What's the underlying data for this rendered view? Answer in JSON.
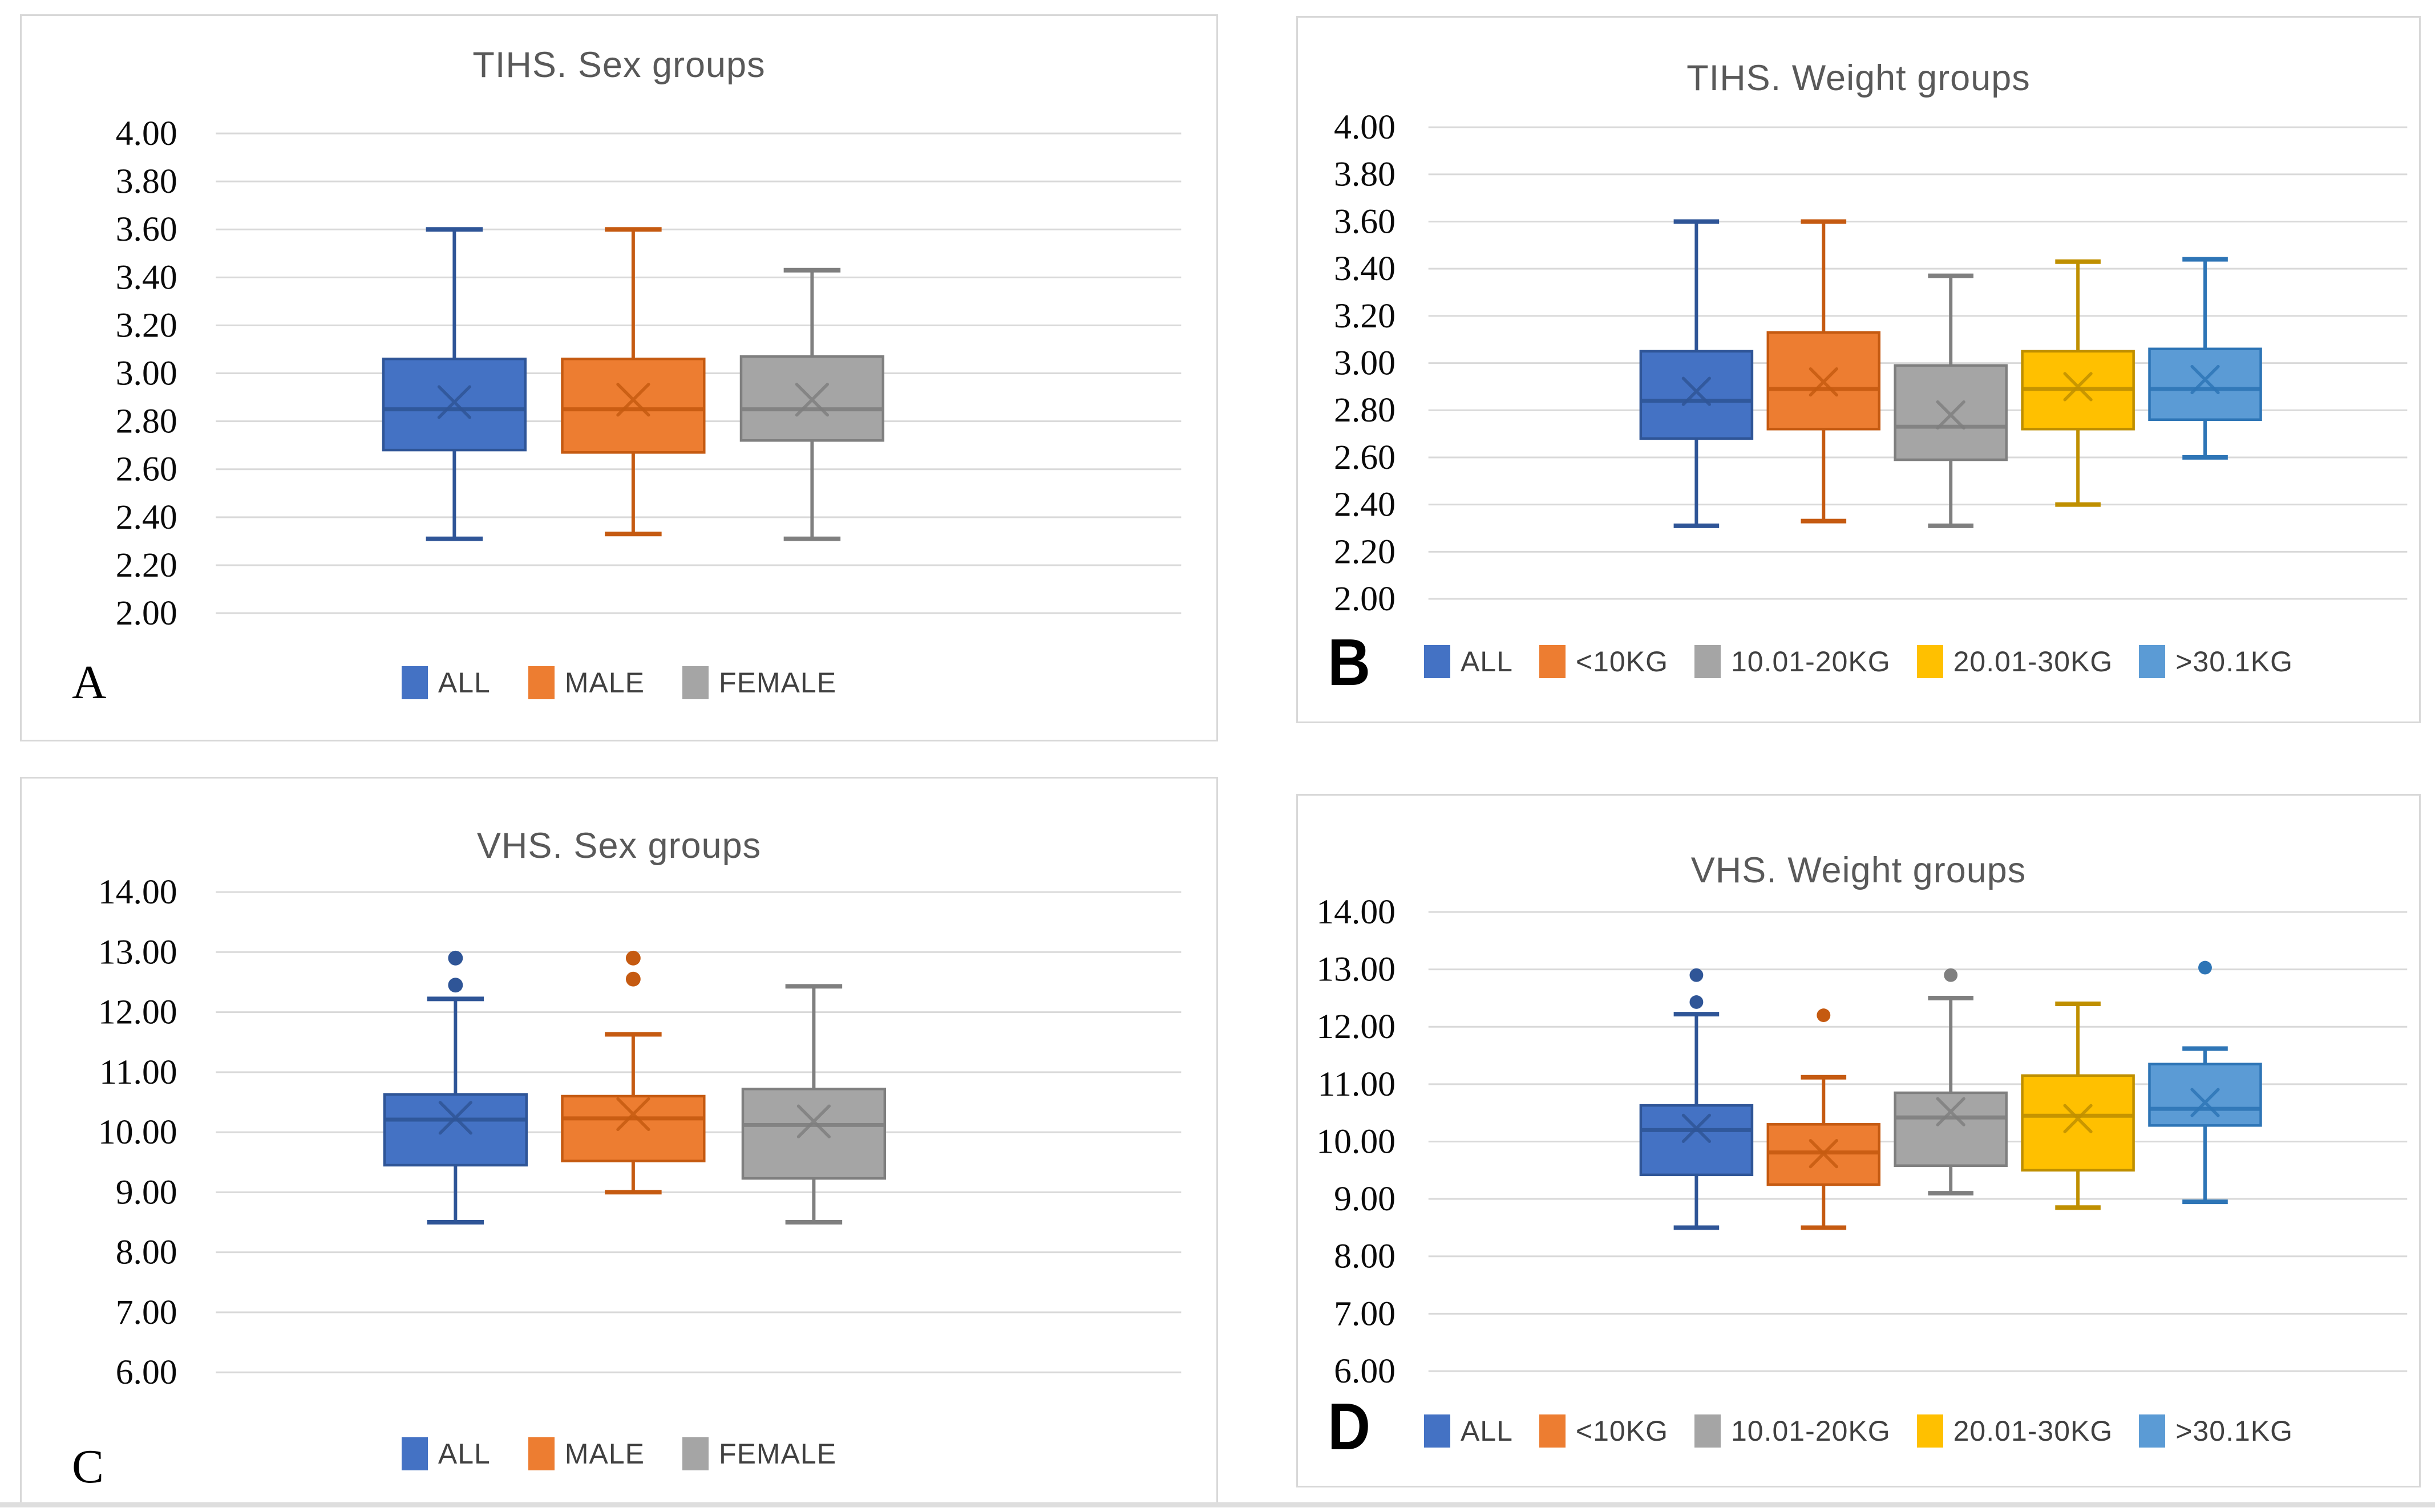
{
  "chart_data": [
    {
      "id": "A",
      "panel_label": "A",
      "title": "TIHS. Sex groups",
      "type": "boxplot",
      "grid": true,
      "legend_position": "bottom",
      "mean_marker": "x",
      "gridline_color": "#d9d9d9",
      "y_axis": {
        "min": 2.0,
        "max": 4.0,
        "step": 0.2,
        "decimals": 2
      },
      "series": [
        {
          "name": "ALL",
          "fill": "#4472C4",
          "edge": "#2F5597",
          "whisker_low": 2.31,
          "q1": 2.68,
          "median": 2.85,
          "mean": 2.88,
          "q3": 3.06,
          "whisker_high": 3.6,
          "outliers": []
        },
        {
          "name": "MALE",
          "fill": "#ED7D31",
          "edge": "#C55A11",
          "whisker_low": 2.33,
          "q1": 2.67,
          "median": 2.85,
          "mean": 2.89,
          "q3": 3.06,
          "whisker_high": 3.6,
          "outliers": []
        },
        {
          "name": "FEMALE",
          "fill": "#A5A5A5",
          "edge": "#7F7F7F",
          "whisker_low": 2.31,
          "q1": 2.72,
          "median": 2.85,
          "mean": 2.89,
          "q3": 3.07,
          "whisker_high": 3.43,
          "outliers": []
        }
      ]
    },
    {
      "id": "B",
      "panel_label": "B",
      "title": "TIHS. Weight groups",
      "type": "boxplot",
      "grid": true,
      "legend_position": "bottom",
      "mean_marker": "x",
      "gridline_color": "#d9d9d9",
      "y_axis": {
        "min": 2.0,
        "max": 4.0,
        "step": 0.2,
        "decimals": 2
      },
      "series": [
        {
          "name": "ALL",
          "fill": "#4472C4",
          "edge": "#2F5597",
          "whisker_low": 2.31,
          "q1": 2.68,
          "median": 2.84,
          "mean": 2.88,
          "q3": 3.05,
          "whisker_high": 3.6,
          "outliers": []
        },
        {
          "name": "<10KG",
          "fill": "#ED7D31",
          "edge": "#C55A11",
          "whisker_low": 2.33,
          "q1": 2.72,
          "median": 2.89,
          "mean": 2.92,
          "q3": 3.13,
          "whisker_high": 3.6,
          "outliers": []
        },
        {
          "name": "10.01-20KG",
          "fill": "#A5A5A5",
          "edge": "#7F7F7F",
          "whisker_low": 2.31,
          "q1": 2.59,
          "median": 2.73,
          "mean": 2.78,
          "q3": 2.99,
          "whisker_high": 3.37,
          "outliers": []
        },
        {
          "name": "20.01-30KG",
          "fill": "#FFC000",
          "edge": "#BF8F00",
          "whisker_low": 2.4,
          "q1": 2.72,
          "median": 2.89,
          "mean": 2.9,
          "q3": 3.05,
          "whisker_high": 3.43,
          "outliers": []
        },
        {
          "name": ">30.1KG",
          "fill": "#5B9BD5",
          "edge": "#2E75B6",
          "whisker_low": 2.6,
          "q1": 2.76,
          "median": 2.89,
          "mean": 2.93,
          "q3": 3.06,
          "whisker_high": 3.44,
          "outliers": []
        }
      ]
    },
    {
      "id": "C",
      "panel_label": "C",
      "title": "VHS. Sex groups",
      "type": "boxplot",
      "grid": true,
      "legend_position": "bottom",
      "mean_marker": "x",
      "gridline_color": "#d9d9d9",
      "y_axis": {
        "min": 6.0,
        "max": 14.0,
        "step": 1.0,
        "decimals": 2
      },
      "series": [
        {
          "name": "ALL",
          "fill": "#4472C4",
          "edge": "#2F5597",
          "whisker_low": 8.5,
          "q1": 9.45,
          "median": 10.21,
          "mean": 10.24,
          "q3": 10.63,
          "whisker_high": 12.22,
          "outliers": [
            12.45,
            12.9
          ]
        },
        {
          "name": "MALE",
          "fill": "#ED7D31",
          "edge": "#C55A11",
          "whisker_low": 9.0,
          "q1": 9.52,
          "median": 10.23,
          "mean": 10.3,
          "q3": 10.6,
          "whisker_high": 11.63,
          "outliers": [
            12.55,
            12.9
          ]
        },
        {
          "name": "FEMALE",
          "fill": "#A5A5A5",
          "edge": "#7F7F7F",
          "whisker_low": 8.5,
          "q1": 9.23,
          "median": 10.12,
          "mean": 10.18,
          "q3": 10.72,
          "whisker_high": 12.43,
          "outliers": []
        }
      ]
    },
    {
      "id": "D",
      "panel_label": "D",
      "title": "VHS. Weight groups",
      "type": "boxplot",
      "grid": true,
      "legend_position": "bottom",
      "mean_marker": "x",
      "gridline_color": "#d9d9d9",
      "y_axis": {
        "min": 6.0,
        "max": 14.0,
        "step": 1.0,
        "decimals": 2
      },
      "series": [
        {
          "name": "ALL",
          "fill": "#4472C4",
          "edge": "#2F5597",
          "whisker_low": 8.5,
          "q1": 9.42,
          "median": 10.2,
          "mean": 10.23,
          "q3": 10.63,
          "whisker_high": 12.22,
          "outliers": [
            12.43,
            12.9
          ]
        },
        {
          "name": "<10KG",
          "fill": "#ED7D31",
          "edge": "#C55A11",
          "whisker_low": 8.5,
          "q1": 9.25,
          "median": 9.81,
          "mean": 9.79,
          "q3": 10.3,
          "whisker_high": 11.12,
          "outliers": [
            12.2
          ]
        },
        {
          "name": "10.01-20KG",
          "fill": "#A5A5A5",
          "edge": "#7F7F7F",
          "whisker_low": 9.1,
          "q1": 9.58,
          "median": 10.42,
          "mean": 10.52,
          "q3": 10.85,
          "whisker_high": 12.5,
          "outliers": [
            12.9
          ]
        },
        {
          "name": "20.01-30KG",
          "fill": "#FFC000",
          "edge": "#BF8F00",
          "whisker_low": 8.85,
          "q1": 9.5,
          "median": 10.45,
          "mean": 10.4,
          "q3": 11.15,
          "whisker_high": 12.4,
          "outliers": []
        },
        {
          "name": ">30.1KG",
          "fill": "#5B9BD5",
          "edge": "#2E75B6",
          "whisker_low": 8.95,
          "q1": 10.28,
          "median": 10.57,
          "mean": 10.68,
          "q3": 11.35,
          "whisker_high": 11.62,
          "outliers": [
            13.03
          ]
        }
      ]
    }
  ]
}
